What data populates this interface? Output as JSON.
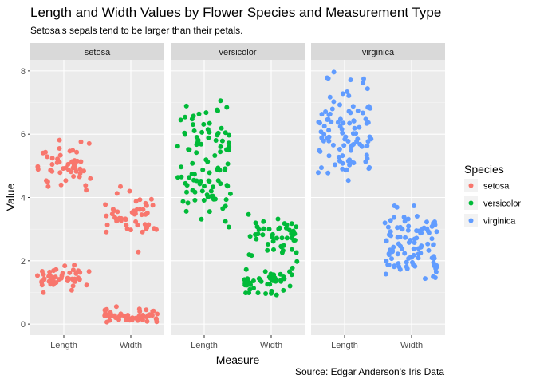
{
  "chart_data": {
    "type": "scatter",
    "title": "Length and Width Values by Flower Species and Measurement Type",
    "subtitle": "Setosa's sepals tend to be larger than their petals.",
    "caption": "Source: Edgar Anderson's Iris Data",
    "xlabel": "Measure",
    "ylabel": "Value",
    "categories": [
      "Length",
      "Width"
    ],
    "ylim": [
      -0.35,
      8.35
    ],
    "yticks": [
      0,
      2,
      4,
      6,
      8
    ],
    "grid": true,
    "jitter": true,
    "legend": {
      "title": "Species",
      "placement": "right"
    },
    "facets": [
      "setosa",
      "versicolor",
      "virginica"
    ],
    "series": [
      {
        "name": "setosa",
        "color": "#F8766D",
        "Length": [
          5.1,
          4.9,
          4.7,
          4.6,
          5.0,
          5.4,
          4.6,
          5.0,
          4.4,
          4.9,
          5.4,
          4.8,
          4.8,
          4.3,
          5.8,
          5.7,
          5.4,
          5.1,
          5.7,
          5.1,
          5.4,
          5.1,
          4.6,
          5.1,
          4.8,
          5.0,
          5.0,
          5.2,
          5.2,
          4.7,
          4.8,
          5.4,
          5.2,
          5.5,
          4.9,
          5.0,
          5.5,
          4.9,
          4.4,
          5.1,
          5.0,
          4.5,
          4.4,
          5.0,
          5.1,
          4.8,
          5.1,
          4.6,
          5.3,
          5.0,
          1.4,
          1.4,
          1.3,
          1.5,
          1.4,
          1.7,
          1.4,
          1.5,
          1.4,
          1.5,
          1.5,
          1.6,
          1.4,
          1.1,
          1.2,
          1.5,
          1.3,
          1.4,
          1.7,
          1.5,
          1.7,
          1.5,
          1.0,
          1.7,
          1.9,
          1.6,
          1.6,
          1.5,
          1.4,
          1.6,
          1.6,
          1.5,
          1.5,
          1.4,
          1.5,
          1.2,
          1.3,
          1.4,
          1.3,
          1.5,
          1.3,
          1.3,
          1.3,
          1.6,
          1.9,
          1.4,
          1.6,
          1.4,
          1.5,
          1.4
        ],
        "Width": [
          3.5,
          3.0,
          3.2,
          3.1,
          3.6,
          3.9,
          3.4,
          3.4,
          2.9,
          3.1,
          3.7,
          3.4,
          3.0,
          3.0,
          4.0,
          4.4,
          3.9,
          3.5,
          3.8,
          3.8,
          3.4,
          3.7,
          3.6,
          3.3,
          3.4,
          3.0,
          3.4,
          3.5,
          3.4,
          3.2,
          3.1,
          3.4,
          4.1,
          4.2,
          3.1,
          3.2,
          3.5,
          3.6,
          3.0,
          3.4,
          3.5,
          2.3,
          3.2,
          3.5,
          3.8,
          3.0,
          3.8,
          3.2,
          3.7,
          3.3,
          0.2,
          0.2,
          0.2,
          0.2,
          0.2,
          0.4,
          0.3,
          0.2,
          0.2,
          0.1,
          0.2,
          0.2,
          0.1,
          0.1,
          0.2,
          0.4,
          0.4,
          0.3,
          0.3,
          0.3,
          0.2,
          0.4,
          0.2,
          0.5,
          0.2,
          0.2,
          0.4,
          0.2,
          0.2,
          0.2,
          0.2,
          0.4,
          0.1,
          0.2,
          0.2,
          0.2,
          0.2,
          0.1,
          0.2,
          0.2,
          0.3,
          0.3,
          0.2,
          0.6,
          0.4,
          0.3,
          0.2,
          0.2,
          0.2,
          0.2
        ]
      },
      {
        "name": "versicolor",
        "color": "#00BA38",
        "Length": [
          7.0,
          6.4,
          6.9,
          5.5,
          6.5,
          5.7,
          6.3,
          4.9,
          6.6,
          5.2,
          5.0,
          5.9,
          6.0,
          6.1,
          5.6,
          6.7,
          5.6,
          5.8,
          6.2,
          5.6,
          5.9,
          6.1,
          6.3,
          6.1,
          6.4,
          6.6,
          6.8,
          6.7,
          6.0,
          5.7,
          5.5,
          5.5,
          5.8,
          6.0,
          5.4,
          6.0,
          6.7,
          6.3,
          5.6,
          5.5,
          5.5,
          6.1,
          5.8,
          5.0,
          5.6,
          5.7,
          5.7,
          6.2,
          5.1,
          5.7,
          4.7,
          4.5,
          4.9,
          4.0,
          4.6,
          4.5,
          4.7,
          3.3,
          4.6,
          3.9,
          3.5,
          4.2,
          4.0,
          4.7,
          3.6,
          4.4,
          4.5,
          4.1,
          4.5,
          3.9,
          4.8,
          4.0,
          4.9,
          4.7,
          4.3,
          4.4,
          4.8,
          5.0,
          4.5,
          3.5,
          3.8,
          3.7,
          3.9,
          5.1,
          4.5,
          4.5,
          4.7,
          4.4,
          4.1,
          4.0,
          4.4,
          4.6,
          4.0,
          3.3,
          4.2,
          4.2,
          4.2,
          4.3,
          3.0,
          4.1
        ],
        "Width": [
          3.2,
          3.2,
          3.1,
          2.3,
          2.8,
          2.8,
          3.3,
          2.4,
          2.9,
          2.7,
          2.0,
          3.0,
          2.2,
          2.9,
          2.9,
          3.1,
          3.0,
          2.7,
          2.2,
          2.5,
          3.2,
          2.8,
          2.5,
          2.8,
          2.9,
          3.0,
          2.8,
          3.0,
          2.9,
          2.6,
          2.4,
          2.4,
          2.7,
          2.7,
          3.0,
          3.4,
          3.1,
          2.3,
          3.0,
          2.5,
          2.6,
          3.0,
          2.6,
          2.3,
          2.7,
          3.0,
          2.9,
          2.9,
          2.5,
          2.8,
          1.4,
          1.5,
          1.5,
          1.3,
          1.5,
          1.3,
          1.6,
          1.0,
          1.3,
          1.4,
          1.0,
          1.5,
          1.0,
          1.4,
          1.3,
          1.4,
          1.5,
          1.0,
          1.5,
          1.1,
          1.8,
          1.3,
          1.5,
          1.2,
          1.3,
          1.4,
          1.4,
          1.7,
          1.5,
          1.0,
          1.1,
          1.0,
          1.2,
          1.6,
          1.5,
          1.6,
          1.5,
          1.3,
          1.3,
          1.3,
          1.2,
          1.4,
          1.2,
          1.0,
          1.3,
          1.2,
          1.3,
          1.3,
          1.1,
          1.3
        ]
      },
      {
        "name": "virginica",
        "color": "#619CFF",
        "Length": [
          6.3,
          5.8,
          7.1,
          6.3,
          6.5,
          7.6,
          4.9,
          7.3,
          6.7,
          7.2,
          6.5,
          6.4,
          6.8,
          5.7,
          5.8,
          6.4,
          6.5,
          7.7,
          7.7,
          6.0,
          6.9,
          5.6,
          7.7,
          6.3,
          6.7,
          7.2,
          6.2,
          6.1,
          6.4,
          7.2,
          7.4,
          7.9,
          6.4,
          6.3,
          6.1,
          7.7,
          6.3,
          6.4,
          6.0,
          6.9,
          6.7,
          6.9,
          5.8,
          6.8,
          6.7,
          6.7,
          6.3,
          6.5,
          6.2,
          5.9,
          6.0,
          5.1,
          5.9,
          5.6,
          5.8,
          6.6,
          4.5,
          6.3,
          5.8,
          6.1,
          5.1,
          5.3,
          5.5,
          5.0,
          5.1,
          5.3,
          5.5,
          6.7,
          6.9,
          5.0,
          5.7,
          4.9,
          6.7,
          4.9,
          5.7,
          6.0,
          4.8,
          4.9,
          5.6,
          5.8,
          6.1,
          6.4,
          5.6,
          5.1,
          5.6,
          6.1,
          5.6,
          5.5,
          4.8,
          5.4,
          5.6,
          5.1,
          5.1,
          5.9,
          5.7,
          5.2,
          5.0,
          5.2,
          5.4,
          5.1
        ],
        "Width": [
          3.3,
          2.7,
          3.0,
          2.9,
          3.0,
          3.0,
          2.5,
          2.9,
          2.5,
          3.6,
          3.2,
          2.7,
          3.0,
          2.5,
          2.8,
          3.2,
          3.0,
          3.8,
          2.6,
          2.2,
          3.2,
          2.8,
          2.8,
          2.7,
          3.3,
          3.2,
          2.8,
          3.0,
          2.8,
          3.0,
          2.8,
          3.8,
          2.8,
          2.8,
          2.6,
          3.0,
          3.4,
          3.1,
          3.0,
          3.1,
          3.1,
          3.1,
          2.7,
          3.2,
          3.3,
          3.0,
          2.5,
          3.0,
          3.4,
          3.0,
          2.5,
          1.9,
          2.1,
          1.8,
          2.2,
          2.1,
          1.7,
          1.8,
          1.8,
          2.5,
          2.0,
          1.9,
          2.1,
          2.0,
          2.4,
          2.3,
          1.8,
          2.2,
          2.3,
          1.5,
          2.3,
          2.0,
          2.0,
          1.8,
          2.1,
          1.8,
          1.8,
          1.8,
          2.1,
          1.6,
          1.9,
          2.0,
          2.2,
          1.5,
          1.4,
          2.3,
          2.4,
          1.8,
          1.8,
          2.1,
          2.4,
          2.3,
          1.9,
          2.3,
          2.5,
          2.3,
          1.9,
          2.0,
          2.3,
          1.8
        ]
      }
    ]
  }
}
